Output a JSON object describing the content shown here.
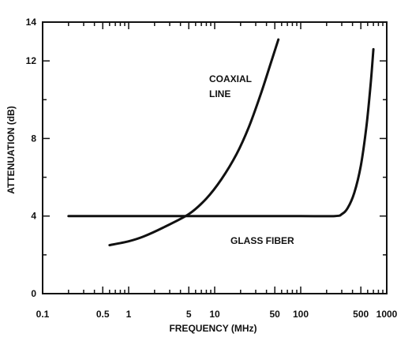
{
  "chart_data": {
    "type": "line",
    "title": "",
    "xlabel": "FREQUENCY (MHz)",
    "ylabel": "ATTENUATION (dB)",
    "x_scale": "log",
    "xlim": [
      0.1,
      1000
    ],
    "ylim": [
      0,
      14
    ],
    "grid": false,
    "x_ticks": [
      {
        "value": 0.1,
        "label": "0.1"
      },
      {
        "value": 0.5,
        "label": "0.5"
      },
      {
        "value": 1,
        "label": "1"
      },
      {
        "value": 5,
        "label": "5"
      },
      {
        "value": 10,
        "label": "10"
      },
      {
        "value": 50,
        "label": "50"
      },
      {
        "value": 100,
        "label": "100"
      },
      {
        "value": 500,
        "label": "500"
      },
      {
        "value": 1000,
        "label": "1000"
      }
    ],
    "y_ticks": [
      {
        "value": 0,
        "label": "0"
      },
      {
        "value": 4,
        "label": "4"
      },
      {
        "value": 8,
        "label": "8"
      },
      {
        "value": 12,
        "label": "12"
      },
      {
        "value": 14,
        "label": "14"
      }
    ],
    "y_minor_ticks": [
      2,
      6,
      10
    ],
    "series": [
      {
        "name": "COAXIAL LINE",
        "label_lines": [
          "COAXIAL",
          "LINE"
        ],
        "x": [
          0.6,
          1.0,
          1.5,
          2.5,
          5.0,
          8.0,
          12.0,
          18.0,
          25.0,
          35.0,
          45.0,
          55.0
        ],
        "y": [
          2.5,
          2.7,
          2.95,
          3.4,
          4.1,
          4.9,
          5.9,
          7.2,
          8.6,
          10.4,
          11.9,
          13.1
        ]
      },
      {
        "name": "GLASS FIBER",
        "label_lines": [
          "GLASS FIBER"
        ],
        "x": [
          0.2,
          1,
          10,
          100,
          250,
          300,
          350,
          420,
          500,
          580,
          650,
          700
        ],
        "y": [
          4.0,
          4.0,
          4.0,
          4.0,
          4.0,
          4.1,
          4.4,
          5.2,
          6.6,
          8.6,
          10.8,
          12.6
        ]
      }
    ]
  }
}
